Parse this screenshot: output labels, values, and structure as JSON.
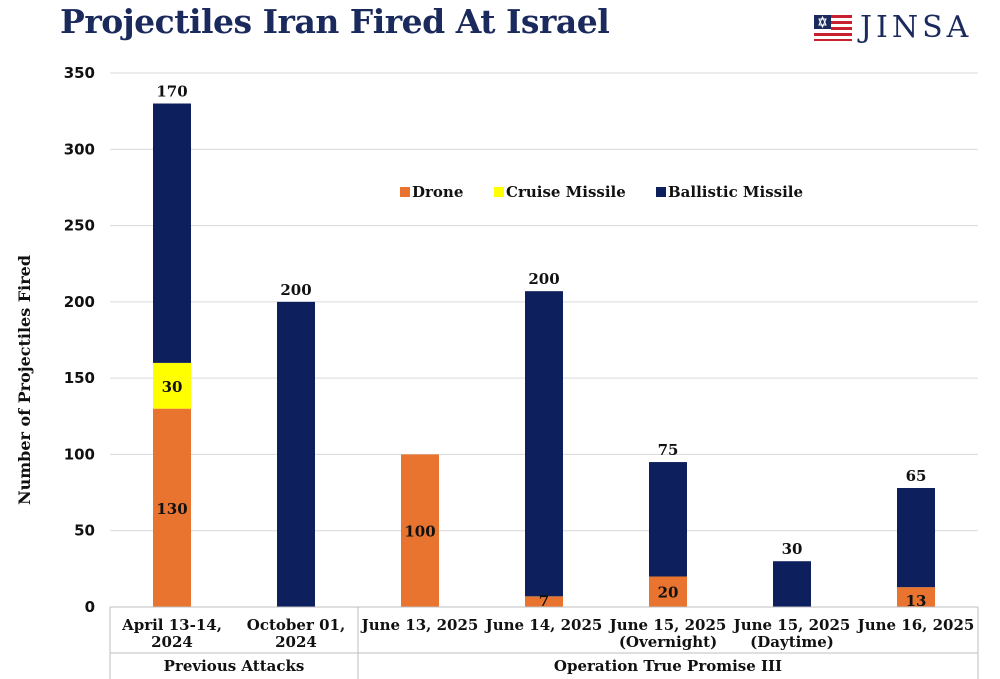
{
  "header": {
    "title": "Projectiles Iran Fired At Israel",
    "logo_text": "JINSA"
  },
  "colors": {
    "title": "#1b2a5c",
    "drone": "#e8742f",
    "cruise": "#ffff00",
    "ballistic": "#0d1f5c",
    "grid": "#d9d9d9"
  },
  "chart_data": {
    "type": "bar",
    "stacked": true,
    "title": "Projectiles Iran Fired At Israel",
    "ylabel": "Number of Projectiles Fired",
    "xlabel": "",
    "ylim": [
      0,
      350
    ],
    "yticks": [
      0,
      50,
      100,
      150,
      200,
      250,
      300,
      350
    ],
    "grid": true,
    "legend_position": "top-center",
    "categories": [
      [
        "April 13-14,",
        "2024"
      ],
      [
        "October 01,",
        "2024"
      ],
      [
        "June 13, 2025"
      ],
      [
        "June 14, 2025"
      ],
      [
        "June 15, 2025",
        "(Overnight)"
      ],
      [
        "June 15, 2025",
        "(Daytime)"
      ],
      [
        "June 16, 2025"
      ]
    ],
    "groups": [
      {
        "label": "Previous Attacks",
        "categories": [
          0,
          1
        ]
      },
      {
        "label": "Operation True Promise III",
        "categories": [
          2,
          3,
          4,
          5,
          6
        ]
      }
    ],
    "series": [
      {
        "name": "Drone",
        "color": "#e8742f",
        "values": [
          130,
          0,
          100,
          7,
          20,
          0,
          13
        ],
        "labels": [
          "130",
          "",
          "100",
          "7",
          "20",
          "",
          "13"
        ]
      },
      {
        "name": "Cruise Missile",
        "color": "#ffff00",
        "values": [
          30,
          0,
          0,
          0,
          0,
          0,
          0
        ],
        "labels": [
          "30",
          "",
          "",
          "",
          "",
          "",
          ""
        ]
      },
      {
        "name": "Ballistic Missile",
        "color": "#0d1f5c",
        "values": [
          170,
          200,
          0,
          200,
          75,
          30,
          65
        ],
        "labels": [
          "170",
          "200",
          "",
          "200",
          "75",
          "30",
          "65"
        ]
      }
    ]
  }
}
